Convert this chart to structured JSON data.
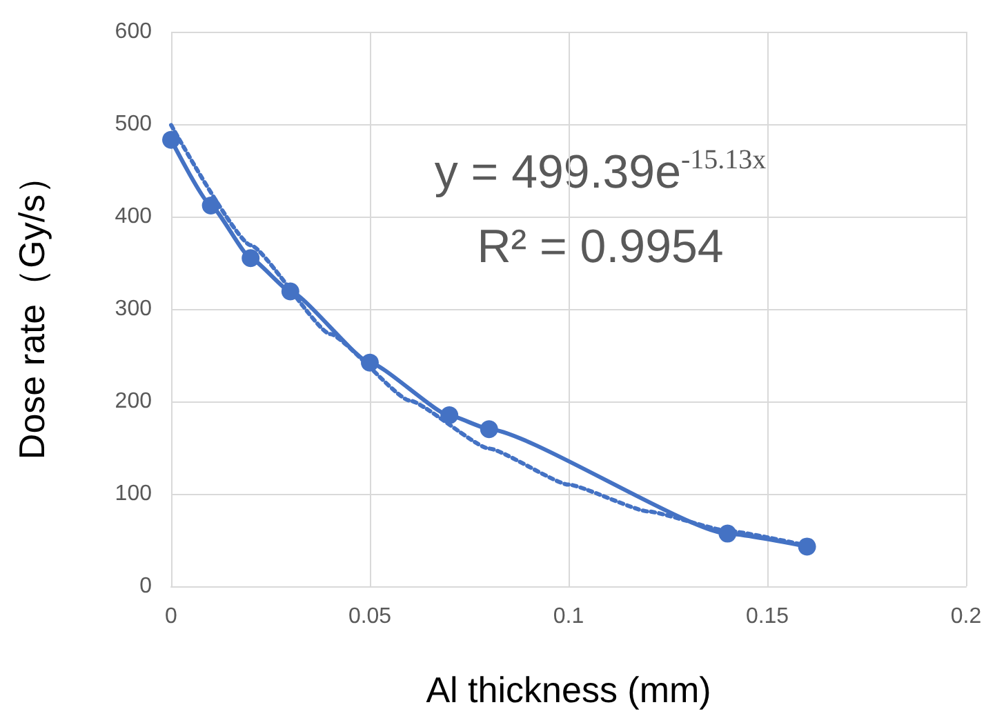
{
  "chart_data": {
    "type": "line",
    "xlabel": "Al thickness (mm)",
    "ylabel": "Dose rate（Gy/s）",
    "xlim": [
      0,
      0.2
    ],
    "xticks": [
      0,
      0.05,
      0.1,
      0.15,
      0.2
    ],
    "ylim": [
      0,
      600
    ],
    "yticks": [
      0,
      100,
      200,
      300,
      400,
      500,
      600
    ],
    "grid": true,
    "series": [
      {
        "color": "#4472c4",
        "marker": "circle",
        "line_style": "solid",
        "x": [
          0,
          0.01,
          0.02,
          0.03,
          0.05,
          0.07,
          0.08,
          0.14,
          0.16
        ],
        "values": [
          483,
          412,
          355,
          319,
          242,
          185,
          170,
          57,
          43
        ]
      },
      {
        "color": "#4472c4",
        "marker": "none",
        "line_style": "dotted",
        "x": [
          0,
          0.02,
          0.04,
          0.06,
          0.08,
          0.1,
          0.12,
          0.14,
          0.16
        ],
        "values": [
          499,
          369,
          273,
          201,
          149,
          110,
          81,
          60,
          44
        ]
      }
    ],
    "annotations": [
      "y = 499.39e$^{-15.13x}$",
      "R² = 0.9954"
    ]
  }
}
